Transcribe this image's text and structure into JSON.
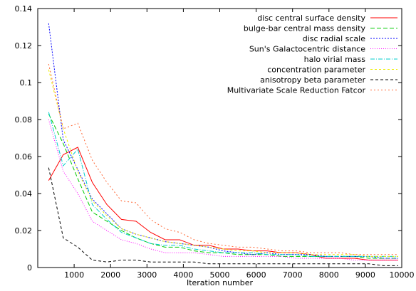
{
  "chart_data": {
    "type": "line",
    "title": "",
    "xlabel": "Iteration number",
    "ylabel": "",
    "xlim": [
      0,
      10000
    ],
    "ylim": [
      0,
      0.14
    ],
    "xticks": [
      1000,
      2000,
      3000,
      4000,
      5000,
      6000,
      7000,
      8000,
      9000,
      10000
    ],
    "yticks": [
      0,
      0.02,
      0.04,
      0.06,
      0.08,
      0.1,
      0.12,
      0.14
    ],
    "grid": false,
    "legend_position": "top-right",
    "x": [
      300,
      700,
      1100,
      1500,
      1900,
      2300,
      2700,
      3100,
      3500,
      3900,
      4300,
      4700,
      5100,
      5500,
      5900,
      6300,
      6700,
      7100,
      7500,
      7900,
      8300,
      8700,
      9100,
      9500,
      9900
    ],
    "series": [
      {
        "name": "disc central surface density",
        "color": "#ff0000",
        "dash": "",
        "values": [
          0.047,
          0.061,
          0.065,
          0.046,
          0.034,
          0.026,
          0.025,
          0.019,
          0.015,
          0.015,
          0.012,
          0.012,
          0.01,
          0.01,
          0.009,
          0.009,
          0.008,
          0.008,
          0.007,
          0.005,
          0.005,
          0.005,
          0.004,
          0.004,
          0.004
        ]
      },
      {
        "name": "bulge-bar central mass density",
        "color": "#00cc00",
        "dash": "6,3",
        "values": [
          0.083,
          0.067,
          0.048,
          0.03,
          0.025,
          0.02,
          0.016,
          0.013,
          0.011,
          0.011,
          0.009,
          0.008,
          0.008,
          0.007,
          0.007,
          0.007,
          0.006,
          0.006,
          0.006,
          0.006,
          0.006,
          0.006,
          0.005,
          0.005,
          0.005
        ]
      },
      {
        "name": "disc radial scale",
        "color": "#0000ff",
        "dash": "2,2",
        "values": [
          0.132,
          0.069,
          0.053,
          0.037,
          0.029,
          0.021,
          0.018,
          0.016,
          0.014,
          0.013,
          0.012,
          0.011,
          0.009,
          0.008,
          0.007,
          0.008,
          0.007,
          0.007,
          0.007,
          0.006,
          0.006,
          0.006,
          0.006,
          0.005,
          0.005
        ]
      },
      {
        "name": "Sun's Galactocentric distance",
        "color": "#ff00ff",
        "dash": "1,2",
        "values": [
          0.08,
          0.052,
          0.04,
          0.025,
          0.02,
          0.015,
          0.013,
          0.01,
          0.008,
          0.008,
          0.008,
          0.007,
          0.006,
          0.006,
          0.006,
          0.006,
          0.006,
          0.005,
          0.005,
          0.005,
          0.005,
          0.004,
          0.004,
          0.004,
          0.004
        ]
      },
      {
        "name": "halo virial mass",
        "color": "#00cccc",
        "dash": "6,2,1,2",
        "values": [
          0.084,
          0.055,
          0.064,
          0.034,
          0.026,
          0.019,
          0.016,
          0.013,
          0.012,
          0.012,
          0.01,
          0.009,
          0.008,
          0.008,
          0.008,
          0.007,
          0.007,
          0.007,
          0.006,
          0.006,
          0.006,
          0.006,
          0.006,
          0.006,
          0.006
        ]
      },
      {
        "name": "concentration parameter",
        "color": "#eeee00",
        "dash": "3,3",
        "values": [
          0.107,
          0.075,
          0.052,
          0.036,
          0.028,
          0.021,
          0.018,
          0.016,
          0.014,
          0.013,
          0.012,
          0.011,
          0.01,
          0.009,
          0.009,
          0.008,
          0.008,
          0.008,
          0.007,
          0.007,
          0.007,
          0.007,
          0.006,
          0.006,
          0.006
        ]
      },
      {
        "name": "anisotropy beta parameter",
        "color": "#000000",
        "dash": "4,3",
        "values": [
          0.054,
          0.016,
          0.011,
          0.004,
          0.003,
          0.004,
          0.004,
          0.003,
          0.003,
          0.003,
          0.003,
          0.002,
          0.002,
          0.002,
          0.002,
          0.002,
          0.002,
          0.002,
          0.002,
          0.002,
          0.002,
          0.002,
          0.002,
          0.001,
          0.001
        ]
      },
      {
        "name": "Multivariate Scale Reduction Fatcor",
        "color": "#ff6633",
        "dash": "2,3",
        "values": [
          0.11,
          0.075,
          0.078,
          0.058,
          0.046,
          0.036,
          0.035,
          0.026,
          0.021,
          0.019,
          0.015,
          0.013,
          0.012,
          0.011,
          0.011,
          0.01,
          0.009,
          0.009,
          0.008,
          0.008,
          0.008,
          0.007,
          0.007,
          0.007,
          0.007
        ]
      }
    ]
  }
}
